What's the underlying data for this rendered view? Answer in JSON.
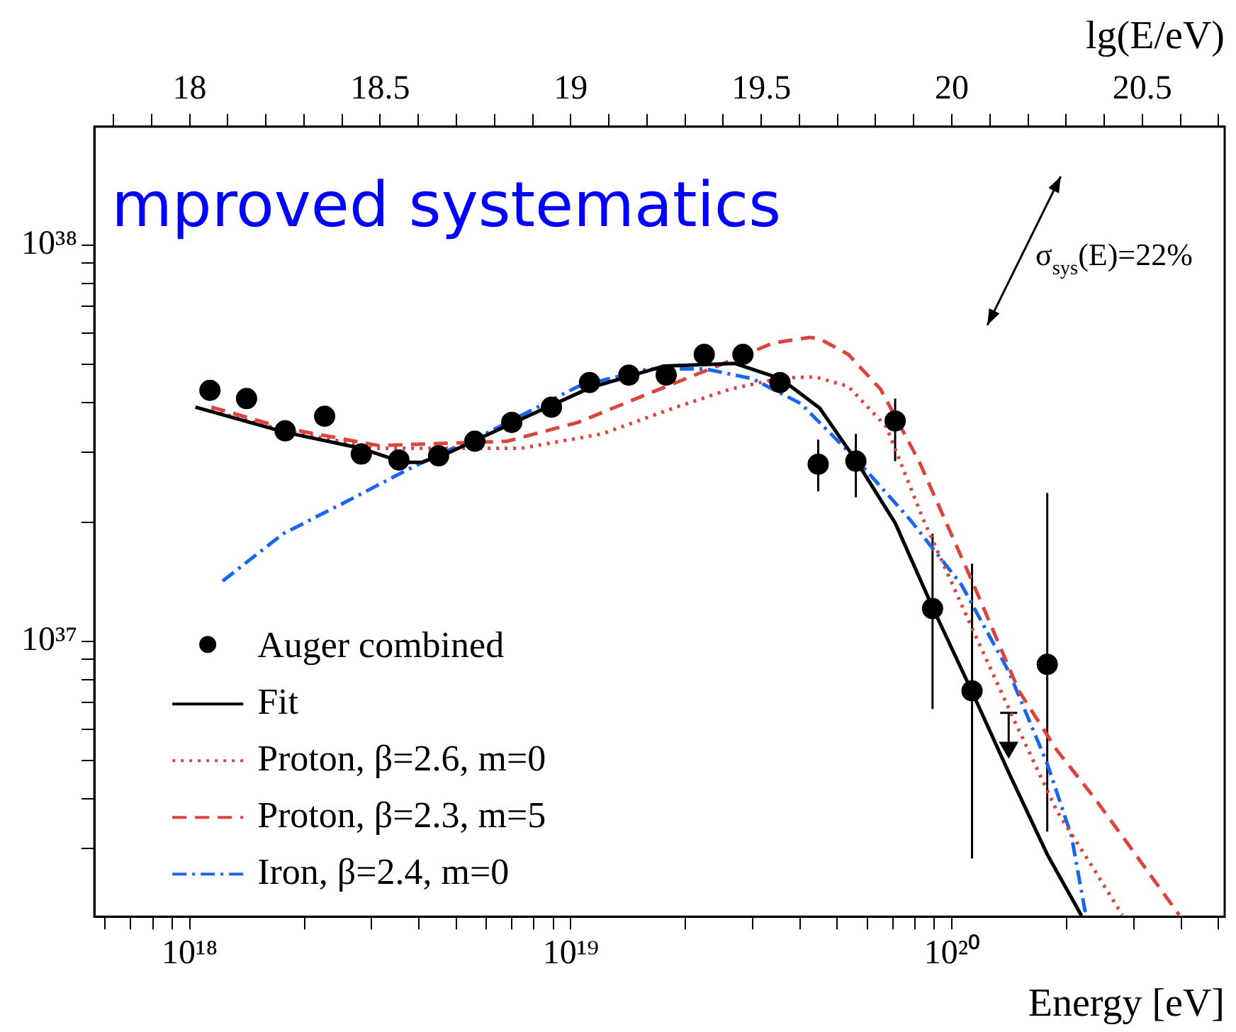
{
  "chart_data": {
    "type": "scatter",
    "xlabel": "Energy [eV]",
    "x2label": "lg(E/eV)",
    "log": "xy",
    "legend": "bottom left",
    "xlim": [
      5.62e+17,
      5.2e+20
    ],
    "ylim": [
      2.02e+36,
      1.99e+38
    ],
    "x2lim": [
      17.75,
      20.716
    ],
    "xticks": [
      {
        "value": 6e+17,
        "label": null
      },
      {
        "value": 7e+17,
        "label": null
      },
      {
        "value": 8e+17,
        "label": null
      },
      {
        "value": 9e+17,
        "label": null
      },
      {
        "value": 1e+18,
        "label": "10¹⁸"
      },
      {
        "value": 2e+18,
        "label": null
      },
      {
        "value": 3e+18,
        "label": null
      },
      {
        "value": 4e+18,
        "label": null
      },
      {
        "value": 5e+18,
        "label": null
      },
      {
        "value": 6e+18,
        "label": null
      },
      {
        "value": 7e+18,
        "label": null
      },
      {
        "value": 8e+18,
        "label": null
      },
      {
        "value": 9e+18,
        "label": null
      },
      {
        "value": 1e+19,
        "label": "10¹⁹"
      },
      {
        "value": 2e+19,
        "label": null
      },
      {
        "value": 3e+19,
        "label": null
      },
      {
        "value": 4e+19,
        "label": null
      },
      {
        "value": 5e+19,
        "label": null
      },
      {
        "value": 6e+19,
        "label": null
      },
      {
        "value": 7e+19,
        "label": null
      },
      {
        "value": 8e+19,
        "label": null
      },
      {
        "value": 9e+19,
        "label": null
      },
      {
        "value": 1e+20,
        "label": "10²⁰"
      },
      {
        "value": 2e+20,
        "label": null
      },
      {
        "value": 3e+20,
        "label": null
      },
      {
        "value": 4e+20,
        "label": null
      },
      {
        "value": 5e+20,
        "label": null
      }
    ],
    "x2ticks": [
      {
        "value": 17.8,
        "label": null
      },
      {
        "value": 17.9,
        "label": null
      },
      18,
      {
        "value": 18.1,
        "label": null
      },
      {
        "value": 18.2,
        "label": null
      },
      {
        "value": 18.3,
        "label": null
      },
      {
        "value": 18.4,
        "label": null
      },
      18.5,
      {
        "value": 18.6,
        "label": null
      },
      {
        "value": 18.7,
        "label": null
      },
      {
        "value": 18.8,
        "label": null
      },
      {
        "value": 18.9,
        "label": null
      },
      19,
      {
        "value": 19.1,
        "label": null
      },
      {
        "value": 19.2,
        "label": null
      },
      {
        "value": 19.3,
        "label": null
      },
      {
        "value": 19.4,
        "label": null
      },
      19.5,
      {
        "value": 19.6,
        "label": null
      },
      {
        "value": 19.7,
        "label": null
      },
      {
        "value": 19.8,
        "label": null
      },
      {
        "value": 19.9,
        "label": null
      },
      20,
      {
        "value": 20.1,
        "label": null
      },
      {
        "value": 20.2,
        "label": null
      },
      {
        "value": 20.3,
        "label": null
      },
      {
        "value": 20.4,
        "label": null
      },
      20.5,
      {
        "value": 20.6,
        "label": null
      },
      {
        "value": 20.7,
        "label": null
      }
    ],
    "yticks": [
      {
        "value": 3e+36,
        "label": null
      },
      {
        "value": 4e+36,
        "label": null
      },
      {
        "value": 5e+36,
        "label": null
      },
      {
        "value": 6e+36,
        "label": null
      },
      {
        "value": 7e+36,
        "label": null
      },
      {
        "value": 8e+36,
        "label": null
      },
      {
        "value": 9e+36,
        "label": null
      },
      {
        "value": 1e+37,
        "label": "10³⁷"
      },
      {
        "value": 2e+37,
        "label": null
      },
      {
        "value": 3e+37,
        "label": null
      },
      {
        "value": 4e+37,
        "label": null
      },
      {
        "value": 5e+37,
        "label": null
      },
      {
        "value": 6e+37,
        "label": null
      },
      {
        "value": 7e+37,
        "label": null
      },
      {
        "value": 8e+37,
        "label": null
      },
      {
        "value": 9e+37,
        "label": null
      },
      {
        "value": 1e+38,
        "label": "10³⁸"
      }
    ],
    "annotations": [
      "σ$_{sys}$(E)=22%",
      "mproved systematics"
    ],
    "series": [
      {
        "name": "Auger combined",
        "color": "#000000",
        "marker": "circle",
        "x": [
          1.13e+18,
          1.41e+18,
          1.78e+18,
          2.26e+18,
          2.82e+18,
          3.54e+18,
          4.5e+18,
          5.6e+18,
          7e+18,
          8.9e+18,
          1.12e+19,
          1.42e+19,
          1.78e+19,
          2.24e+19,
          2.83e+19,
          3.54e+19,
          4.46e+19,
          5.6e+19,
          7.1e+19,
          8.9e+19,
          1.13e+20,
          1.78e+20
        ],
        "values": [
          4.3e+37,
          4.1e+37,
          3.4e+37,
          3.7e+37,
          2.97e+37,
          2.87e+37,
          2.94e+37,
          3.2e+37,
          3.57e+37,
          3.9e+37,
          4.5e+37,
          4.7e+37,
          4.7e+37,
          5.3e+37,
          5.3e+37,
          4.5e+37,
          2.8e+37,
          2.85e+37,
          3.6e+37,
          1.21e+37,
          7.5e+36,
          8.75e+36
        ],
        "errors": [
          null,
          null,
          null,
          null,
          null,
          null,
          null,
          null,
          null,
          null,
          null,
          null,
          null,
          null,
          null,
          null,
          [
            2.39e+37,
            3.23e+37
          ],
          [
            2.31e+37,
            3.34e+37
          ],
          [
            2.85e+37,
            4.1e+37
          ],
          [
            6.75e+36,
            1.87e+37
          ],
          [
            2.83e+36,
            1.57e+37
          ],
          [
            3.31e+36,
            2.37e+37
          ]
        ]
      },
      {
        "color": "#000000",
        "marker": "triangle",
        "x": [
          1.41e+20
        ],
        "values": [
          5.4e+36
        ],
        "errors": [
          [
            5.4e+36,
            6.6e+36
          ]
        ]
      },
      {
        "type": "line",
        "name": "Fit",
        "color": "#000000",
        "marker": "none",
        "line_style": "solid",
        "x": [
          1.035e+18,
          1.78e+18,
          2.82e+18,
          3.63e+18,
          4.06e+18,
          4.8e+18,
          7.1e+18,
          1.12e+19,
          1.75e+19,
          2.69e+19,
          3.56e+19,
          4.5e+19,
          5.62e+19,
          7.1e+19,
          8.93e+19,
          1.13e+20,
          1.41e+20,
          1.78e+20,
          2.19e+20
        ],
        "values": [
          3.9e+37,
          3.37e+37,
          3.07e+37,
          2.83e+37,
          2.83e+37,
          3e+37,
          3.57e+37,
          4.36e+37,
          4.95e+37,
          5.03e+37,
          4.6e+37,
          3.88e+37,
          2.85e+37,
          1.99e+37,
          1.21e+37,
          7.46e+36,
          4.67e+36,
          2.9e+36,
          2.03e+36
        ]
      },
      {
        "type": "line",
        "name": "Proton, β=2.6, m=0",
        "color": "#d9453f",
        "marker": "none",
        "line_style": "dotted",
        "x": [
          1.14e+18,
          1.78e+18,
          3.13e+18,
          7.4e+18,
          1.21e+19,
          1.86e+19,
          2.62e+19,
          3.56e+19,
          4.38e+19,
          5.35e+19,
          6.73e+19,
          8.4e+19,
          1.13e+20,
          1.46e+20,
          1.89e+20,
          2.36e+20,
          2.8e+20
        ],
        "values": [
          3.82e+37,
          3.4e+37,
          3.07e+37,
          3.07e+37,
          3.34e+37,
          3.88e+37,
          4.33e+37,
          4.62e+37,
          4.65e+37,
          4.4e+37,
          3.48e+37,
          2.04e+37,
          1.08e+37,
          6.3e+36,
          3.72e+36,
          2.66e+36,
          2.04e+36
        ]
      },
      {
        "type": "line",
        "name": "Proton, β=2.3, m=5",
        "color": "#d9453f",
        "marker": "none",
        "line_style": "dashed",
        "x": [
          1.14e+18,
          1.78e+18,
          3.13e+18,
          6.8e+18,
          1.045e+19,
          1.6e+19,
          2.47e+19,
          3.39e+19,
          4.24e+19,
          4.5e+19,
          5.35e+19,
          6.5e+19,
          8.2e+19,
          1.13e+20,
          1.5e+20,
          1.89e+20,
          2.36e+20,
          2.98e+20,
          3.95e+20
        ],
        "values": [
          3.9e+37,
          3.45e+37,
          3.12e+37,
          3.2e+37,
          3.57e+37,
          4.22e+37,
          4.99e+37,
          5.66e+37,
          5.85e+37,
          5.8e+37,
          5.3e+37,
          4.33e+37,
          2.85e+37,
          1.42e+37,
          7.5e+36,
          5.3e+36,
          4.04e+36,
          2.97e+36,
          2.04e+36
        ]
      },
      {
        "type": "line",
        "name": "Iron, β=2.4, m=0",
        "color": "#1a66f0",
        "marker": "none",
        "line_style": "dashdot",
        "x": [
          1.22e+18,
          1.76e+18,
          2.71e+18,
          3.72e+18,
          4.54e+18,
          6.08e+18,
          1.045e+19,
          1.6e+19,
          2.26e+19,
          3e+19,
          4.02e+19,
          5.67e+19,
          7.73e+19,
          1.06e+20,
          1.41e+20,
          1.78e+20,
          2.06e+20,
          2.24e+20
        ],
        "values": [
          1.42e+37,
          1.87e+37,
          2.31e+37,
          2.71e+37,
          2.97e+37,
          3.37e+37,
          4.4e+37,
          4.87e+37,
          4.87e+37,
          4.6e+37,
          3.98e+37,
          2.85e+37,
          2.04e+37,
          1.39e+37,
          8.4e+36,
          4.91e+36,
          3.23e+36,
          2.07e+36
        ]
      }
    ]
  }
}
